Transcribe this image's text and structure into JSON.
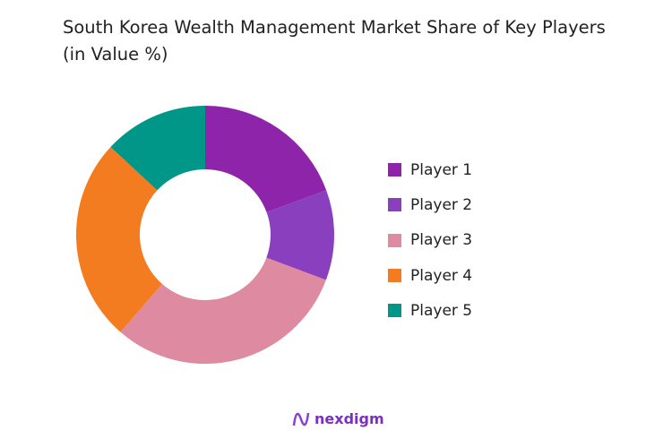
{
  "chart_data": {
    "type": "pie",
    "donut": true,
    "title": "South Korea Wealth Management Market Share of Key Players (in Value %)",
    "categories": [
      "Player 1",
      "Player 2",
      "Player 3",
      "Player 4",
      "Player 5"
    ],
    "values": [
      19.4,
      11.3,
      30.7,
      25.5,
      13.1
    ],
    "colors": [
      "#8E24AA",
      "#8A3FBF",
      "#DE8AA0",
      "#F47C20",
      "#009688"
    ],
    "legend_position": "right"
  },
  "brand": {
    "name": "nexdigm"
  }
}
